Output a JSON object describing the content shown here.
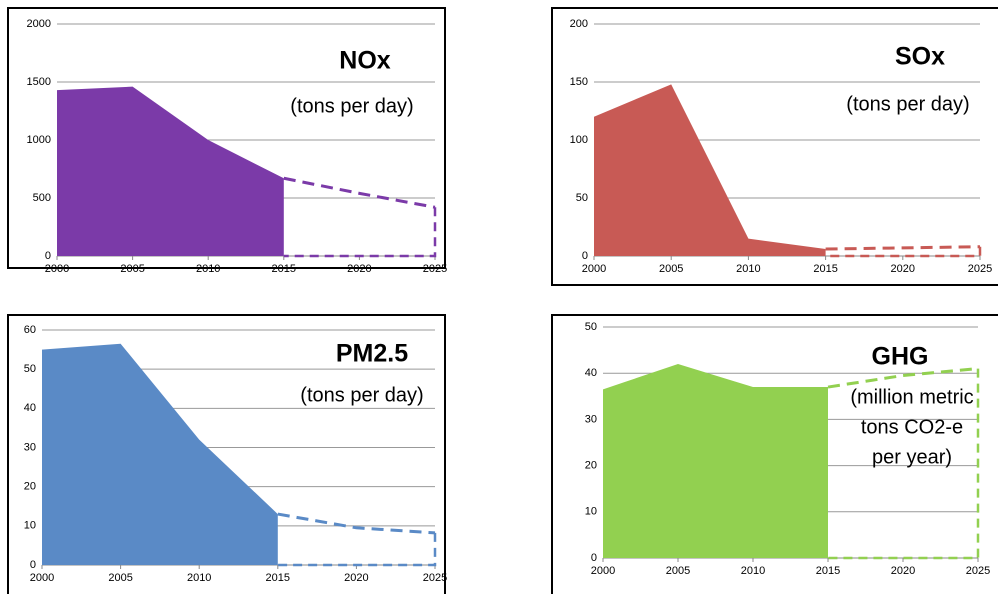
{
  "chart_data": [
    {
      "type": "area",
      "title": "NOx",
      "subtitle": [
        "(tons per day)"
      ],
      "x": [
        2000,
        2005,
        2010,
        2015,
        2020,
        2025
      ],
      "series": [
        {
          "color": "#7b3aa8",
          "style": "area",
          "values": [
            1430,
            1460,
            1000,
            670,
            null,
            null
          ]
        },
        {
          "color": "#7b3aa8",
          "style": "dashed",
          "values": [
            null,
            null,
            null,
            670,
            540,
            420
          ]
        }
      ],
      "xlim": [
        2000,
        2025
      ],
      "xticks": [
        2000,
        2005,
        2010,
        2015,
        2020,
        2025
      ],
      "ylim": [
        0,
        2000
      ],
      "yticks": [
        0,
        500,
        1000,
        1500,
        2000
      ],
      "grid": true
    },
    {
      "type": "area",
      "title": "SOx",
      "subtitle": [
        "(tons per day)"
      ],
      "x": [
        2000,
        2005,
        2010,
        2015,
        2020,
        2025
      ],
      "series": [
        {
          "color": "#c85a55",
          "style": "area",
          "values": [
            120,
            148,
            15,
            6,
            null,
            null
          ]
        },
        {
          "color": "#c85a55",
          "style": "dashed",
          "values": [
            null,
            null,
            null,
            6,
            7,
            8
          ]
        }
      ],
      "xlim": [
        2000,
        2025
      ],
      "xticks": [
        2000,
        2005,
        2010,
        2015,
        2020,
        2025
      ],
      "ylim": [
        0,
        200
      ],
      "yticks": [
        0,
        50,
        100,
        150,
        200
      ],
      "grid": true
    },
    {
      "type": "area",
      "title": "PM2.5",
      "subtitle": [
        "(tons per day)"
      ],
      "x": [
        2000,
        2005,
        2010,
        2015,
        2020,
        2025
      ],
      "series": [
        {
          "color": "#5a8ac6",
          "style": "area",
          "values": [
            55,
            56.5,
            32,
            13,
            null,
            null
          ]
        },
        {
          "color": "#5a8ac6",
          "style": "dashed",
          "values": [
            null,
            null,
            null,
            13,
            9.5,
            8.2
          ]
        }
      ],
      "xlim": [
        2000,
        2025
      ],
      "xticks": [
        2000,
        2005,
        2010,
        2015,
        2020,
        2025
      ],
      "ylim": [
        0,
        60
      ],
      "yticks": [
        0,
        10,
        20,
        30,
        40,
        50,
        60
      ],
      "grid": true
    },
    {
      "type": "area",
      "title": "GHG",
      "subtitle": [
        "(million metric",
        "tons CO2-e",
        "per year)"
      ],
      "x": [
        2000,
        2005,
        2010,
        2015,
        2020,
        2025
      ],
      "series": [
        {
          "color": "#92d050",
          "style": "area",
          "values": [
            36.5,
            42,
            37,
            37,
            null,
            null
          ]
        },
        {
          "color": "#92d050",
          "style": "dashed",
          "values": [
            null,
            null,
            null,
            37,
            39.5,
            41
          ]
        }
      ],
      "xlim": [
        2000,
        2025
      ],
      "xticks": [
        2000,
        2005,
        2010,
        2015,
        2020,
        2025
      ],
      "ylim": [
        0,
        50
      ],
      "yticks": [
        0,
        10,
        20,
        30,
        40,
        50
      ],
      "grid": true
    }
  ]
}
